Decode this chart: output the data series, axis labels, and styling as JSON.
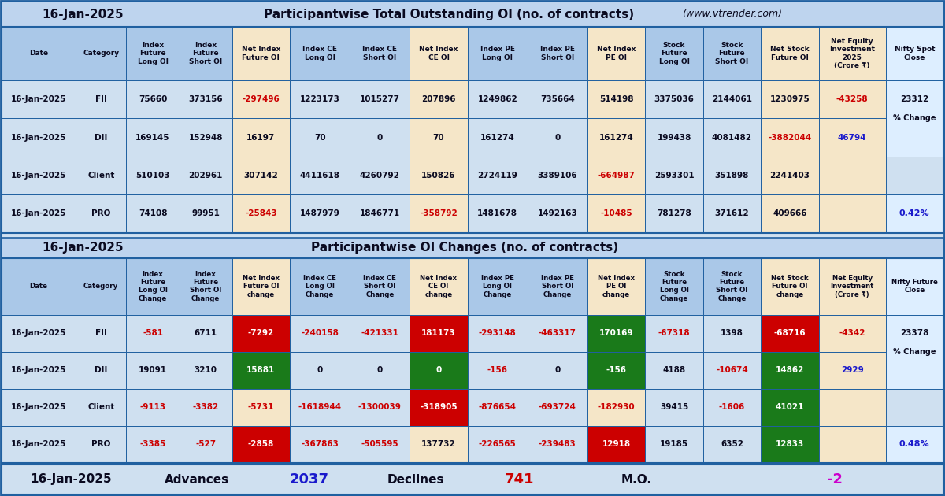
{
  "date": "16-Jan-2025",
  "title1": "Participantwise Total Outstanding OI (no. of contracts)",
  "website": "(www.vtrender.com)",
  "title2": "Participantwise OI Changes (no. of contracts)",
  "footer_date": "16-Jan-2025",
  "footer_advances_label": "Advances",
  "footer_advances_value": "2037",
  "footer_declines_label": "Declines",
  "footer_declines_value": "741",
  "footer_mo_label": "M.O.",
  "footer_mo_value": "-2",
  "table1_headers": [
    "Date",
    "Category",
    "Index\nFuture\nLong OI",
    "Index\nFuture\nShort OI",
    "Net Index\nFuture OI",
    "Index CE\nLong OI",
    "Index CE\nShort OI",
    "Net Index\nCE OI",
    "Index PE\nLong OI",
    "Index PE\nShort OI",
    "Net Index\nPE OI",
    "Stock\nFuture\nLong OI",
    "Stock\nFuture\nShort OI",
    "Net Stock\nFuture OI",
    "Net Equity\nInvestment\n2025\n(Crore ₹)",
    "Nifty Spot\nClose"
  ],
  "table1_rows": [
    [
      "16-Jan-2025",
      "FII",
      "75660",
      "373156",
      "-297496",
      "1223173",
      "1015277",
      "207896",
      "1249862",
      "735664",
      "514198",
      "3375036",
      "2144061",
      "1230975",
      "-43258",
      "23312"
    ],
    [
      "16-Jan-2025",
      "DII",
      "169145",
      "152948",
      "16197",
      "70",
      "0",
      "70",
      "161274",
      "0",
      "161274",
      "199438",
      "4081482",
      "-3882044",
      "46794",
      ""
    ],
    [
      "16-Jan-2025",
      "Client",
      "510103",
      "202961",
      "307142",
      "4411618",
      "4260792",
      "150826",
      "2724119",
      "3389106",
      "-664987",
      "2593301",
      "351898",
      "2241403",
      "",
      ""
    ],
    [
      "16-Jan-2025",
      "PRO",
      "74108",
      "99951",
      "-25843",
      "1487979",
      "1846771",
      "-358792",
      "1481678",
      "1492163",
      "-10485",
      "781278",
      "371612",
      "409666",
      "",
      ""
    ]
  ],
  "table1_neg_red": [
    [
      0,
      4
    ],
    [
      3,
      4
    ],
    [
      2,
      10
    ],
    [
      3,
      7
    ],
    [
      3,
      10
    ],
    [
      1,
      13
    ]
  ],
  "table1_net_eq_neg": [
    [
      0,
      14
    ]
  ],
  "table1_net_eq_pos": [
    [
      1,
      14
    ]
  ],
  "table1_pct_value": "0.42%",
  "table2_headers": [
    "Date",
    "Category",
    "Index\nFuture\nLong OI\nChange",
    "Index\nFuture\nShort OI\nChange",
    "Net Index\nFuture OI\nchange",
    "Index CE\nLong OI\nChange",
    "Index CE\nShort OI\nChange",
    "Net Index\nCE OI\nchange",
    "Index PE\nLong OI\nChange",
    "Index PE\nShort OI\nChange",
    "Net Index\nPE OI\nchange",
    "Stock\nFuture\nLong OI\nChange",
    "Stock\nFuture\nShort OI\nChange",
    "Net Stock\nFuture OI\nchange",
    "Net Equity\nInvestment\n(Crore ₹)",
    "Nifty Future\nClose"
  ],
  "table2_rows": [
    [
      "16-Jan-2025",
      "FII",
      "-581",
      "6711",
      "-7292",
      "-240158",
      "-421331",
      "181173",
      "-293148",
      "-463317",
      "170169",
      "-67318",
      "1398",
      "-68716",
      "-4342",
      "23378"
    ],
    [
      "16-Jan-2025",
      "DII",
      "19091",
      "3210",
      "15881",
      "0",
      "0",
      "0",
      "-156",
      "0",
      "-156",
      "4188",
      "-10674",
      "14862",
      "2929",
      ""
    ],
    [
      "16-Jan-2025",
      "Client",
      "-9113",
      "-3382",
      "-5731",
      "-1618944",
      "-1300039",
      "-318905",
      "-876654",
      "-693724",
      "-182930",
      "39415",
      "-1606",
      "41021",
      "",
      ""
    ],
    [
      "16-Jan-2025",
      "PRO",
      "-3385",
      "-527",
      "-2858",
      "-367863",
      "-505595",
      "137732",
      "-226565",
      "-239483",
      "12918",
      "19185",
      "6352",
      "12833",
      "",
      ""
    ]
  ],
  "table2_red_cells": [
    [
      0,
      4
    ],
    [
      3,
      4
    ],
    [
      0,
      7
    ],
    [
      2,
      7
    ],
    [
      3,
      10
    ],
    [
      0,
      13
    ]
  ],
  "table2_green_cells": [
    [
      1,
      4
    ],
    [
      1,
      7
    ],
    [
      0,
      10
    ],
    [
      1,
      10
    ],
    [
      2,
      13
    ],
    [
      1,
      13
    ],
    [
      3,
      13
    ]
  ],
  "table2_net_eq_neg": [
    [
      0,
      14
    ]
  ],
  "table2_net_eq_pos": [
    [
      1,
      14
    ]
  ],
  "table2_pct_value": "0.48%",
  "bg_color": "#cfe0f0",
  "header_bg": "#aac8e8",
  "title_bg": "#bed4ee",
  "net_col_bg": "#f5e6c8",
  "red_cell_bg": "#cc0000",
  "green_cell_bg": "#1a7a1a",
  "red_text": "#cc0000",
  "blue_text": "#1a1acc",
  "purple_text": "#cc00cc",
  "white_text": "#ffffff",
  "dark_text": "#0a0a20",
  "border_color": "#2060a0",
  "spot_col_bg": "#ddeeff"
}
